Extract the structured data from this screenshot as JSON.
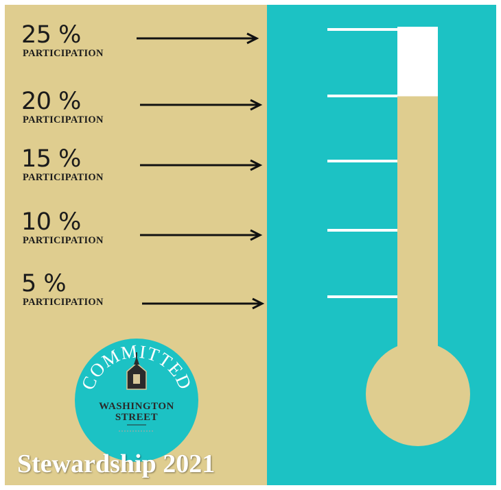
{
  "levels": [
    {
      "percent": "25 %",
      "caption": "PARTICIPATION"
    },
    {
      "percent": "20 %",
      "caption": "PARTICIPATION"
    },
    {
      "percent": "15 %",
      "caption": "PARTICIPATION"
    },
    {
      "percent": "10 %",
      "caption": "PARTICIPATION"
    },
    {
      "percent": "5 %",
      "caption": "PARTICIPATION"
    }
  ],
  "logo": {
    "top_text": "COMMITTED",
    "line1": "WASHINGTON",
    "line2": "STREET"
  },
  "footer": "Stewardship 2021",
  "thermometer": {
    "progress_percent": 20,
    "max_percent": 25
  },
  "colors": {
    "tan": "#dfcd8f",
    "teal": "#1cc2c4",
    "white": "#ffffff",
    "ink": "#1b1b1b"
  }
}
